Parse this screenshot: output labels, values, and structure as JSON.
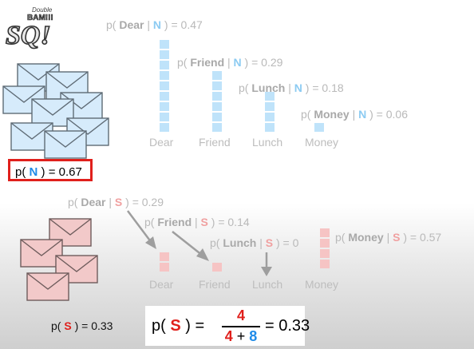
{
  "logo": {
    "top": "Double",
    "mid": "BAM!!!",
    "letters": "SQ!"
  },
  "normal": {
    "dear": {
      "prefix": "p( ",
      "word": "Dear",
      "bar": " | ",
      "cls": "N",
      "suffix": " ) = 0.47"
    },
    "friend": {
      "prefix": "p( ",
      "word": "Friend",
      "bar": " | ",
      "cls": "N",
      "suffix": " ) = 0.29"
    },
    "lunch": {
      "prefix": "p( ",
      "word": "Lunch",
      "bar": " | ",
      "cls": "N",
      "suffix": " ) = 0.18"
    },
    "money": {
      "prefix": "p( ",
      "word": "Money",
      "bar": " | ",
      "cls": "N",
      "suffix": " ) = 0.06"
    },
    "xlabels": [
      "Dear",
      "Friend",
      "Lunch",
      "Money"
    ],
    "prior": {
      "prefix": "p( ",
      "cls": "N",
      "suffix": " ) = 0.67"
    }
  },
  "spam": {
    "dear": {
      "prefix": "p( ",
      "word": "Dear",
      "bar": " | ",
      "cls": "S",
      "suffix": " ) = 0.29"
    },
    "friend": {
      "prefix": "p( ",
      "word": "Friend",
      "bar": " | ",
      "cls": "S",
      "suffix": " ) = 0.14"
    },
    "lunch": {
      "prefix": "p( ",
      "word": "Lunch",
      "bar": " | ",
      "cls": "S",
      "suffix": " ) = 0"
    },
    "money": {
      "prefix": "p( ",
      "word": "Money",
      "bar": " | ",
      "cls": "S",
      "suffix": " ) = 0.57"
    },
    "xlabels": [
      "Dear",
      "Friend",
      "Lunch",
      "Money"
    ],
    "prior": {
      "prefix": "p( ",
      "cls": "S",
      "suffix": " ) = 0.33"
    }
  },
  "formula": {
    "lhs_prefix": "p( ",
    "cls": "S",
    "lhs_suffix": " ) =",
    "numerator": "4",
    "den_a": "4",
    "plus": " + ",
    "den_b": "8",
    "result": "= 0.33"
  },
  "colors": {
    "normal": "#bfe3fa",
    "spam": "#f6c4c4",
    "highlight_border": "#e0201c"
  }
}
